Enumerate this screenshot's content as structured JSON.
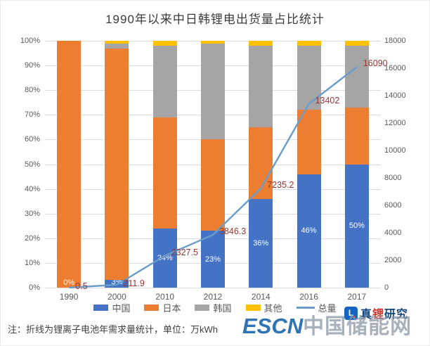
{
  "title": "1990年以来中日韩锂电出货量占比统计",
  "footnote": "注：折线为锂离子电池年需求量统计，单位：万kWh",
  "branding": {
    "realli_icon_letter": "L",
    "realli_part_blue1": "真",
    "realli_part_red": "锂",
    "realli_part_blue2": "研究",
    "escn_latin": "ESCN",
    "escn_cn": "中国储能网"
  },
  "colors": {
    "china": "#4472c4",
    "japan": "#ed7d31",
    "korea": "#a5a5a5",
    "other": "#ffc000",
    "line": "#6a9cc9",
    "line_label": "#963735",
    "grid": "#dcdcdc",
    "axis_text": "#595959"
  },
  "chart_data": {
    "type": "bar",
    "subtype": "stacked-100-percent-with-line",
    "categories": [
      "1990",
      "2000",
      "2010",
      "2012",
      "2014",
      "2016",
      "2017"
    ],
    "series": [
      {
        "name": "中国",
        "color": "#4472c4",
        "values": [
          0,
          3,
          24,
          23,
          36,
          46,
          50
        ]
      },
      {
        "name": "日本",
        "color": "#ed7d31",
        "values": [
          100,
          94,
          45,
          37,
          29,
          26,
          23
        ]
      },
      {
        "name": "韩国",
        "color": "#a5a5a5",
        "values": [
          0,
          2,
          29,
          39,
          33,
          26,
          25
        ]
      },
      {
        "name": "其他",
        "color": "#ffc000",
        "values": [
          0,
          1,
          2,
          1,
          2,
          2,
          2
        ]
      }
    ],
    "bar_labels": [
      "0%",
      "3%",
      "24%",
      "23%",
      "36%",
      "46%",
      "50%"
    ],
    "line_series": {
      "name": "总量",
      "color": "#6a9cc9",
      "values": [
        0.5,
        211.9,
        2327.5,
        3846.3,
        7235.2,
        13402,
        16090
      ],
      "labels": [
        "0.5",
        "211.9",
        "2327.5",
        "3846.3",
        "7235.2",
        "13402",
        "16090"
      ]
    },
    "left_axis": {
      "min": 0,
      "max": 100,
      "ticks": [
        "100%",
        "90%",
        "80%",
        "70%",
        "60%",
        "50%",
        "40%",
        "30%",
        "20%",
        "10%",
        "0%"
      ]
    },
    "right_axis": {
      "min": 0,
      "max": 18000,
      "ticks": [
        "18000",
        "16000",
        "14000",
        "12000",
        "10000",
        "8000",
        "6000",
        "4000",
        "2000",
        "0"
      ]
    },
    "legend": [
      {
        "label": "中国",
        "type": "bar",
        "color": "#4472c4"
      },
      {
        "label": "日本",
        "type": "bar",
        "color": "#ed7d31"
      },
      {
        "label": "韩国",
        "type": "bar",
        "color": "#a5a5a5"
      },
      {
        "label": "其他",
        "type": "bar",
        "color": "#ffc000"
      },
      {
        "label": "总量",
        "type": "line",
        "color": "#6a9cc9"
      }
    ],
    "grid": true,
    "legend_position": "bottom"
  }
}
